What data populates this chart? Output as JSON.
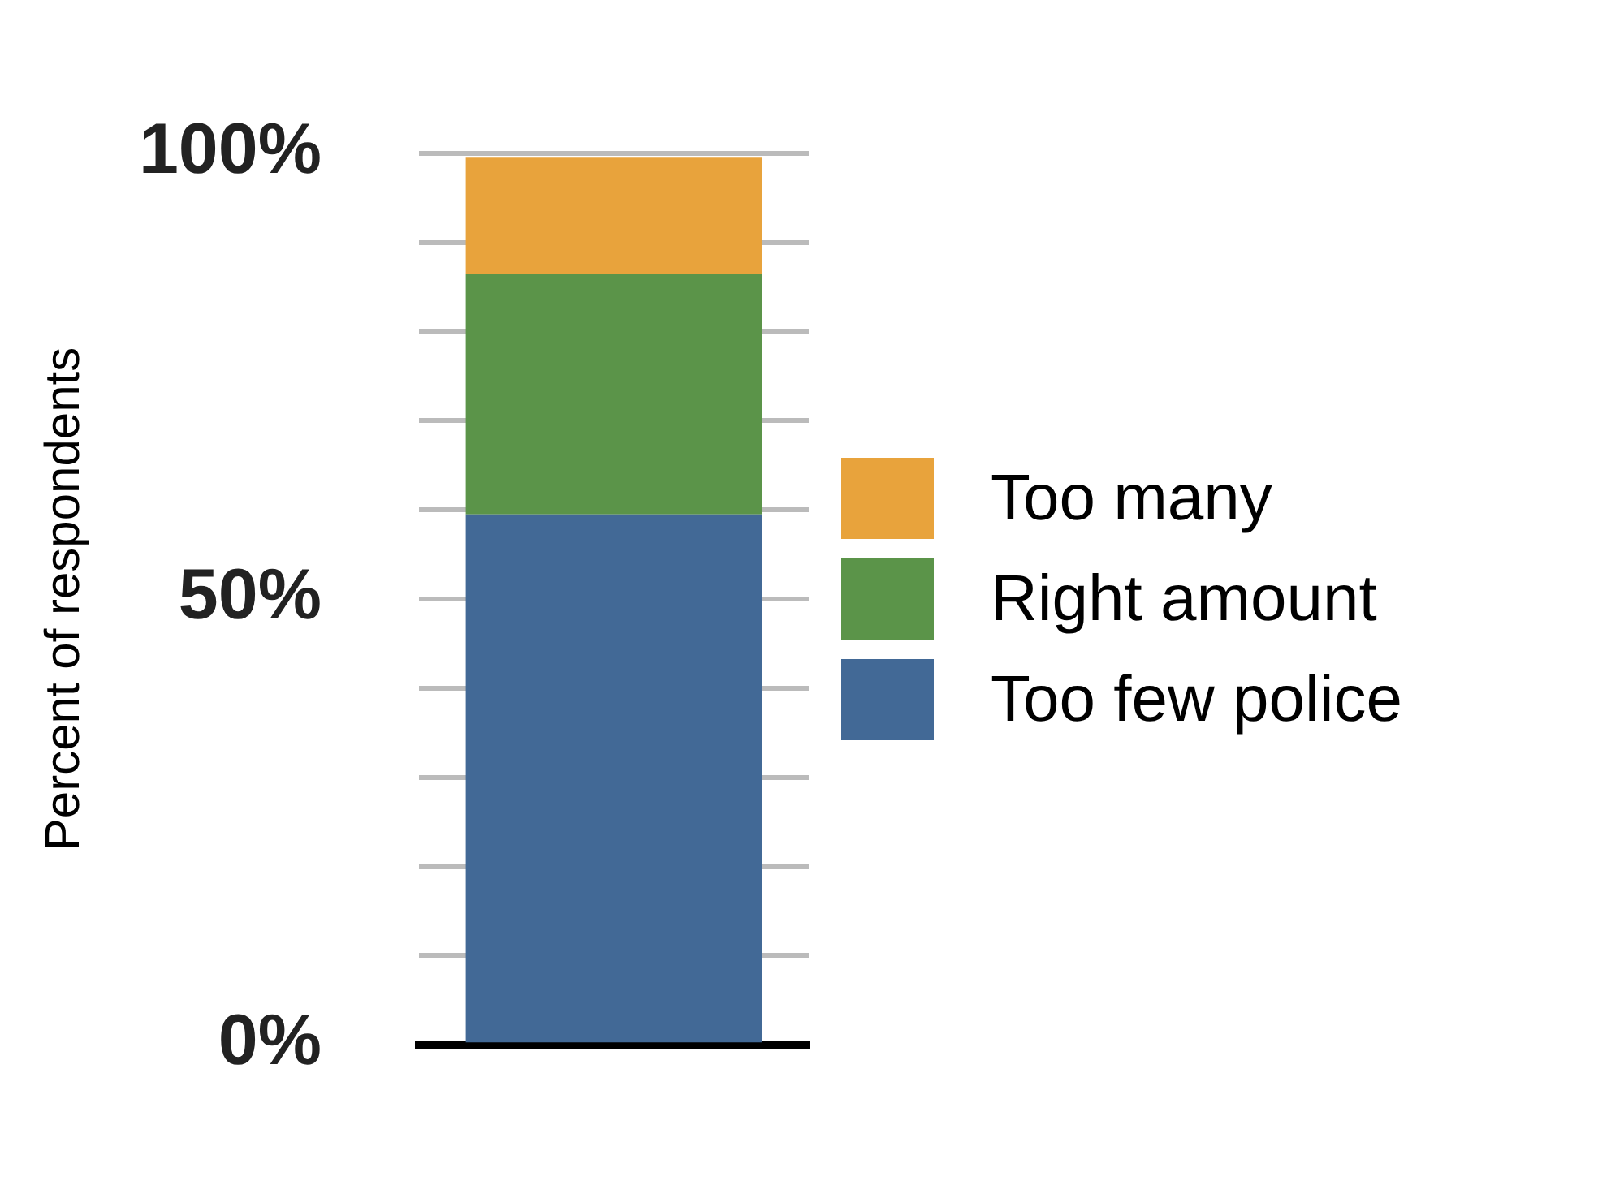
{
  "chart_data": {
    "type": "bar",
    "ylabel": "Percent of respondents",
    "categories": [
      null
    ],
    "stacked": true,
    "series": [
      {
        "name": "Too few police",
        "color": "#426996",
        "values": [
          59.5
        ]
      },
      {
        "name": "Right amount",
        "color": "#5b9449",
        "values": [
          27
        ]
      },
      {
        "name": "Too many",
        "color": "#e8a33c",
        "values": [
          13
        ]
      }
    ],
    "ylim": [
      0,
      100
    ],
    "yticks": [
      {
        "value": 0,
        "label": "0%"
      },
      {
        "value": 10,
        "label": null
      },
      {
        "value": 20,
        "label": null
      },
      {
        "value": 30,
        "label": null
      },
      {
        "value": 40,
        "label": null
      },
      {
        "value": 50,
        "label": "50%"
      },
      {
        "value": 60,
        "label": null
      },
      {
        "value": 70,
        "label": null
      },
      {
        "value": 80,
        "label": null
      },
      {
        "value": 90,
        "label": null
      },
      {
        "value": 100,
        "label": "100%"
      }
    ],
    "grid": "y",
    "legend": "right",
    "tick_labels": "y"
  }
}
